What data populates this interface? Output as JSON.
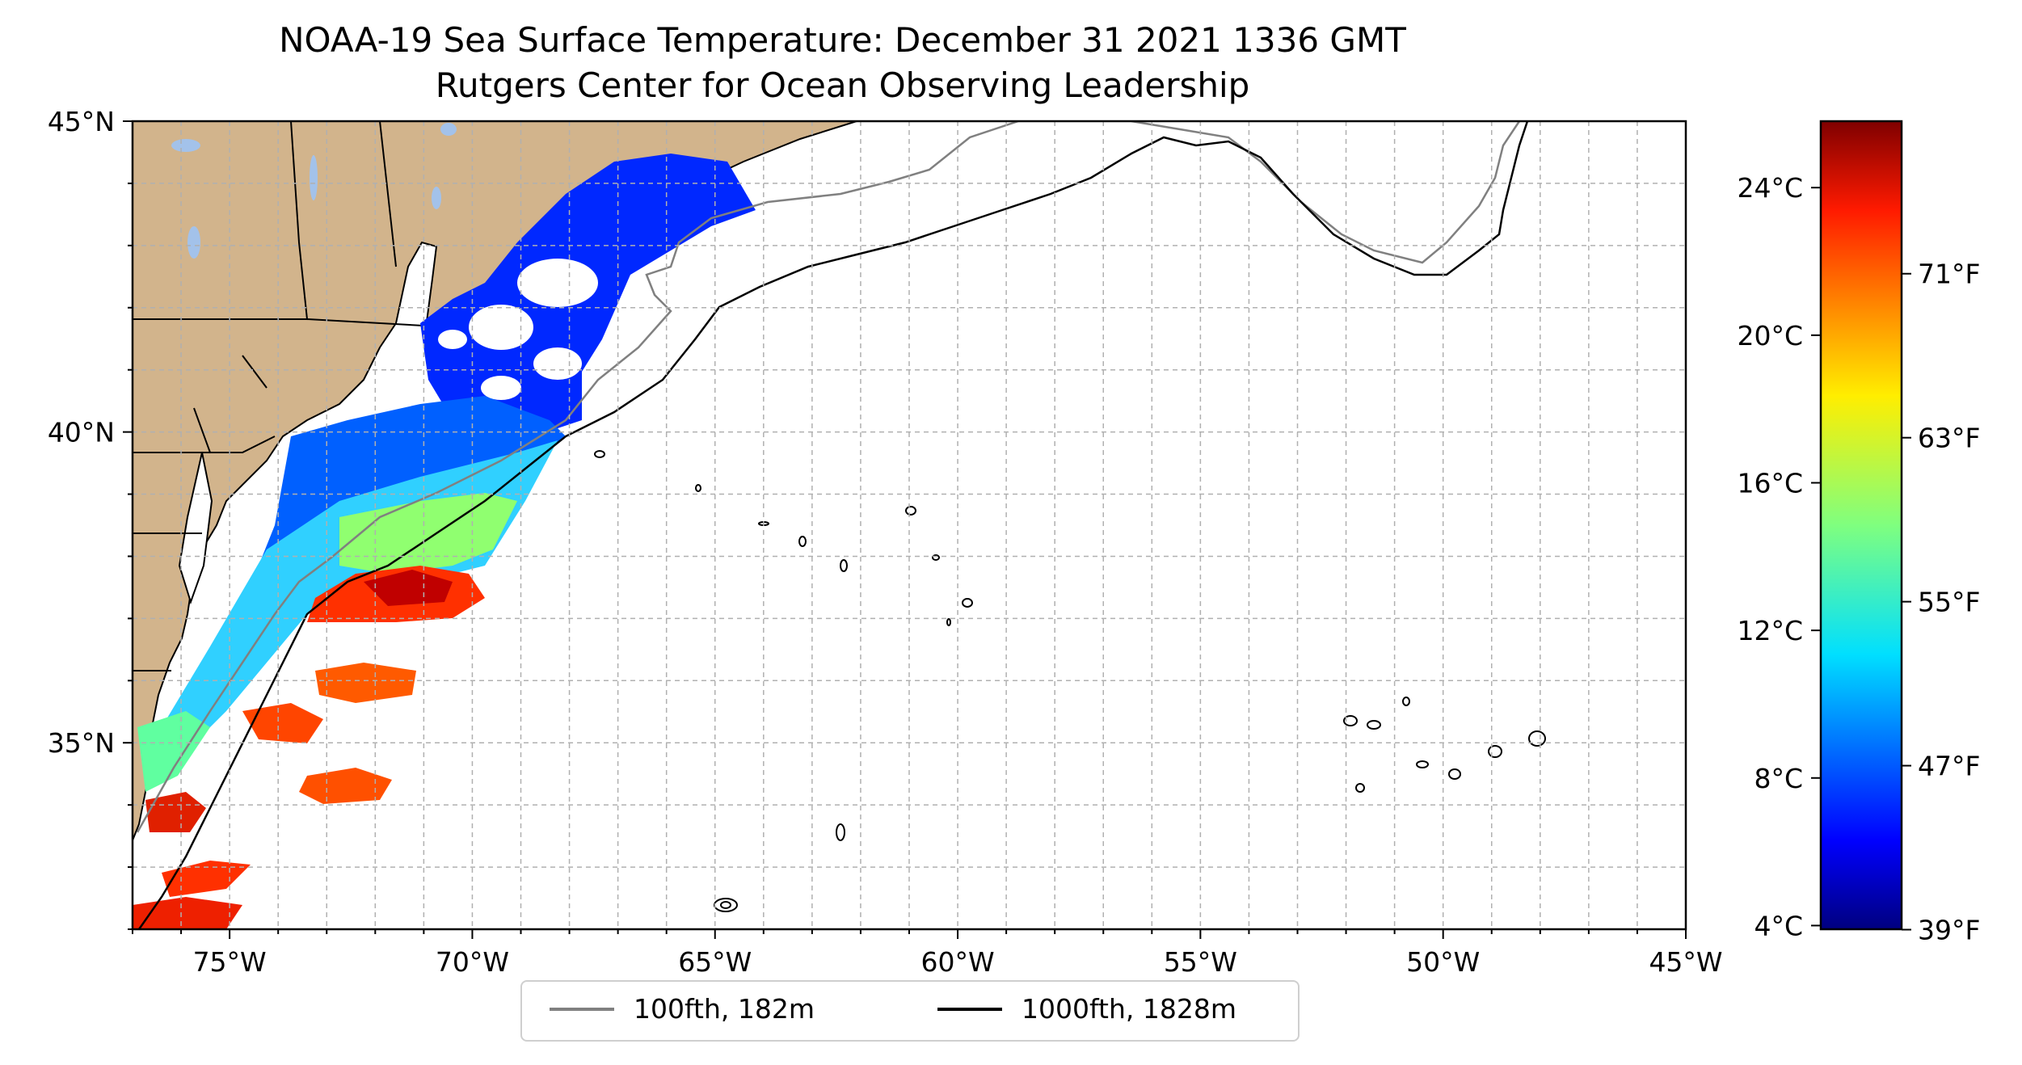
{
  "title": "NOAA-19 Sea Surface Temperature: December 31 2021 1336 GMT",
  "subtitle": "Rutgers Center for Ocean Observing Leadership",
  "map": {
    "lon_range": [
      -77,
      -45
    ],
    "lat_range": [
      32,
      45
    ],
    "x_ticks": [
      "75°W",
      "70°W",
      "65°W",
      "60°W",
      "55°W",
      "50°W",
      "45°W"
    ],
    "x_tick_values": [
      -75,
      -70,
      -65,
      -60,
      -55,
      -50,
      -45
    ],
    "y_ticks": [
      "35°N",
      "40°N",
      "45°N"
    ],
    "y_tick_values": [
      35,
      40,
      45
    ],
    "grid": true,
    "land_color": "#d2b48c",
    "lake_color": "#a3c2ea"
  },
  "legend": {
    "placement": "bottom-center",
    "entries": [
      {
        "label": "100fth, 182m",
        "color": "#808080"
      },
      {
        "label": "1000fth, 1828m",
        "color": "#000000"
      }
    ]
  },
  "colorbar": {
    "colormap": "jet",
    "range_c": [
      3.9,
      25.8
    ],
    "celsius_ticks": [
      "4°C",
      "8°C",
      "12°C",
      "16°C",
      "20°C",
      "24°C"
    ],
    "celsius_values": [
      4,
      8,
      12,
      16,
      20,
      24
    ],
    "fahrenheit_ticks": [
      "39°F",
      "47°F",
      "55°F",
      "63°F",
      "71°F"
    ],
    "fahrenheit_values": [
      39,
      47,
      55,
      63,
      71
    ]
  }
}
